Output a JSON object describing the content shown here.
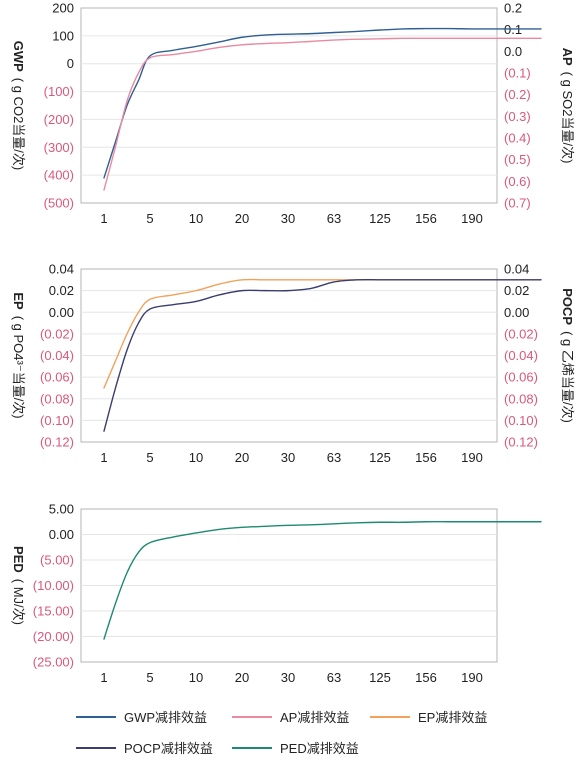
{
  "colors": {
    "gwp": "#2f5f93",
    "ap": "#e98aa0",
    "ep": "#f2a15b",
    "pocp": "#3a3d6e",
    "ped": "#1e8a70",
    "negative_text": "#d9597a",
    "text": "#222222",
    "grid": "#e6e6e6",
    "frame": "#b5b5b5"
  },
  "legend": [
    {
      "key": "gwp",
      "label": "GWP减排效益"
    },
    {
      "key": "ap",
      "label": "AP减排效益"
    },
    {
      "key": "ep",
      "label": "EP减排效益"
    },
    {
      "key": "pocp",
      "label": "POCP减排效益"
    },
    {
      "key": "ped",
      "label": "PED减排效益"
    }
  ],
  "chart_data": [
    {
      "type": "line",
      "categories": [
        "1",
        "5",
        "10",
        "20",
        "30",
        "63",
        "125",
        "156",
        "190"
      ],
      "left_axis": {
        "title": "GWP",
        "unit": "( g CO2当量/次)",
        "ticks": [
          "200",
          "100",
          "0",
          "(100)",
          "(200)",
          "(300)",
          "(400)",
          "(500)"
        ],
        "range": [
          -500,
          200
        ]
      },
      "right_axis": {
        "title": "AP",
        "unit": "( g SO2当量/次)",
        "ticks": [
          "0.2",
          "0.1",
          "0.0",
          "(0.1)",
          "(0.2)",
          "(0.3)",
          "(0.4)",
          "(0.5)",
          "(0.6)",
          "(0.7)"
        ],
        "range": [
          -0.7,
          0.2
        ]
      },
      "series": [
        {
          "key": "gwp",
          "axis": "left",
          "x": [
            1,
            1.5,
            2,
            2.5,
            3,
            4,
            5,
            6,
            7,
            8,
            9,
            10,
            11,
            12,
            13,
            14,
            15,
            16,
            17,
            18,
            19,
            20
          ],
          "y": [
            -410,
            -280,
            -150,
            -60,
            28,
            48,
            62,
            78,
            95,
            103,
            106,
            108,
            112,
            116,
            121,
            125,
            126,
            126,
            125,
            125,
            125,
            125
          ]
        },
        {
          "key": "ap",
          "axis": "right",
          "x": [
            1,
            1.5,
            2,
            2.5,
            3,
            4,
            5,
            6,
            7,
            8,
            9,
            10,
            11,
            12,
            13,
            14,
            15,
            16,
            17,
            18,
            19,
            20
          ],
          "y": [
            -0.64,
            -0.44,
            -0.23,
            -0.1,
            -0.03,
            -0.015,
            0.0,
            0.018,
            0.03,
            0.036,
            0.04,
            0.046,
            0.052,
            0.056,
            0.058,
            0.06,
            0.06,
            0.06,
            0.06,
            0.06,
            0.06,
            0.06
          ]
        }
      ]
    },
    {
      "type": "line",
      "categories": [
        "1",
        "5",
        "10",
        "20",
        "30",
        "63",
        "125",
        "156",
        "190"
      ],
      "left_axis": {
        "title": "EP",
        "unit": "( g PO4³⁻当量/次)",
        "ticks": [
          "0.04",
          "0.02",
          "0.00",
          "(0.02)",
          "(0.04)",
          "(0.06)",
          "(0.08)",
          "(0.10)",
          "(0.12)"
        ],
        "range": [
          -0.12,
          0.04
        ]
      },
      "right_axis": {
        "title": "POCP",
        "unit": "( g 乙烯当量/次)",
        "ticks": [
          "0.04",
          "0.02",
          "0.00",
          "(0.02)",
          "(0.04)",
          "(0.06)",
          "(0.08)",
          "(0.10)",
          "(0.12)"
        ],
        "range": [
          -0.12,
          0.04
        ]
      },
      "series": [
        {
          "key": "ep",
          "axis": "left",
          "x": [
            1,
            1.5,
            2,
            2.5,
            3,
            4,
            5,
            6,
            7,
            8,
            9,
            10,
            11,
            12,
            13,
            14,
            15,
            16,
            17,
            18,
            19,
            20
          ],
          "y": [
            -0.07,
            -0.045,
            -0.02,
            0.0,
            0.012,
            0.016,
            0.02,
            0.026,
            0.03,
            0.03,
            0.03,
            0.03,
            0.03,
            0.03,
            0.03,
            0.03,
            0.03,
            0.03,
            0.03,
            0.03,
            0.03,
            0.03
          ]
        },
        {
          "key": "pocp",
          "axis": "right",
          "x": [
            1,
            1.5,
            2,
            2.5,
            3,
            4,
            5,
            6,
            7,
            8,
            9,
            10,
            11,
            12,
            13,
            14,
            15,
            16,
            17,
            18,
            19,
            20
          ],
          "y": [
            -0.11,
            -0.07,
            -0.035,
            -0.01,
            0.003,
            0.007,
            0.01,
            0.016,
            0.02,
            0.02,
            0.02,
            0.022,
            0.028,
            0.03,
            0.03,
            0.03,
            0.03,
            0.03,
            0.03,
            0.03,
            0.03,
            0.03
          ]
        }
      ]
    },
    {
      "type": "line",
      "categories": [
        "1",
        "5",
        "10",
        "20",
        "30",
        "63",
        "125",
        "156",
        "190"
      ],
      "left_axis": {
        "title": "PED",
        "unit": "( MJ/次)",
        "ticks": [
          "5.00",
          "0.00",
          "(5.00)",
          "(10.00)",
          "(15.00)",
          "(20.00)",
          "(25.00)"
        ],
        "range": [
          -25,
          5
        ]
      },
      "series": [
        {
          "key": "ped",
          "axis": "left",
          "x": [
            1,
            1.5,
            2,
            2.5,
            3,
            4,
            5,
            6,
            7,
            8,
            9,
            10,
            11,
            12,
            13,
            14,
            15,
            16,
            17,
            18,
            19,
            20
          ],
          "y": [
            -20.5,
            -13.5,
            -7.5,
            -3.5,
            -1.6,
            -0.5,
            0.3,
            1.0,
            1.4,
            1.6,
            1.8,
            1.9,
            2.1,
            2.3,
            2.4,
            2.4,
            2.5,
            2.5,
            2.5,
            2.5,
            2.5,
            2.5
          ]
        }
      ]
    }
  ]
}
